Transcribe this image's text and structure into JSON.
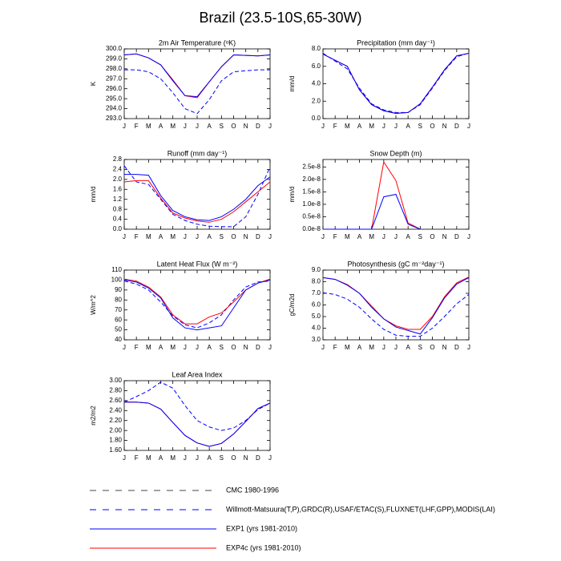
{
  "title": "Brazil (23.5-10S,65-30W)",
  "legend": [
    {
      "name": "CMC 1980-1996",
      "color": "#444444",
      "dash": "8,8"
    },
    {
      "name": "Willmott-Matsuura(T,P),GRDC(R),USAF/ETAC(S),FLUXNET(LHF,GPP),MODIS(LAI)",
      "color": "#0000ff",
      "dash": "8,8"
    },
    {
      "name": "EXP1 (yrs 1981-2010)",
      "color": "#0000ff",
      "dash": "none"
    },
    {
      "name": "EXP4c (yrs 1981-2010)",
      "color": "#ff0000",
      "dash": "none"
    }
  ],
  "chart_data": [
    {
      "type": "line",
      "title": "2m Air Temperature (ᵒK)",
      "ylabel": "K",
      "categories": [
        "J",
        "F",
        "M",
        "A",
        "M",
        "J",
        "J",
        "A",
        "S",
        "O",
        "N",
        "D",
        "J"
      ],
      "ylim": [
        293,
        300
      ],
      "yticks": [
        {
          "value": 293,
          "label": "293.0"
        },
        {
          "value": 294,
          "label": "294.0"
        },
        {
          "value": 295,
          "label": "295.0"
        },
        {
          "value": 296,
          "label": "296.0"
        },
        {
          "value": 297,
          "label": "297.0"
        },
        {
          "value": 298,
          "label": "298.0"
        },
        {
          "value": 299,
          "label": "299.0"
        },
        {
          "value": 300,
          "label": "300.0"
        }
      ],
      "series": [
        {
          "color": "#0000ff",
          "dash": "5,3",
          "values": [
            297.9,
            297.9,
            297.7,
            297.0,
            295.6,
            294.0,
            293.5,
            294.9,
            296.8,
            297.7,
            297.8,
            297.9,
            297.9
          ]
        },
        {
          "color": "#ff0000",
          "dash": "none",
          "values": [
            299.4,
            299.5,
            299.1,
            298.4,
            296.9,
            295.3,
            295.1,
            296.7,
            298.2,
            299.4,
            299.35,
            299.3,
            299.4
          ]
        },
        {
          "color": "#0000ff",
          "dash": "none",
          "values": [
            299.4,
            299.5,
            299.1,
            298.4,
            296.8,
            295.3,
            295.2,
            296.7,
            298.2,
            299.4,
            299.35,
            299.3,
            299.4
          ]
        }
      ]
    },
    {
      "type": "line",
      "title": "Precipitation (mm day⁻¹)",
      "ylabel": "mm/d",
      "categories": [
        "J",
        "F",
        "M",
        "A",
        "M",
        "J",
        "J",
        "A",
        "S",
        "O",
        "N",
        "D",
        "J"
      ],
      "ylim": [
        0,
        8
      ],
      "yticks": [
        {
          "value": 0,
          "label": "0.0"
        },
        {
          "value": 2,
          "label": "2.0"
        },
        {
          "value": 4,
          "label": "4.0"
        },
        {
          "value": 6,
          "label": "6.0"
        },
        {
          "value": 8,
          "label": "8.0"
        }
      ],
      "series": [
        {
          "color": "#0000ff",
          "dash": "5,3",
          "values": [
            7.5,
            6.6,
            5.7,
            3.5,
            1.7,
            1.0,
            0.7,
            0.7,
            1.6,
            3.5,
            5.5,
            7.1,
            7.5
          ]
        },
        {
          "color": "#ff0000",
          "dash": "none",
          "values": [
            7.4,
            6.7,
            6.0,
            3.3,
            1.6,
            0.9,
            0.6,
            0.7,
            1.7,
            3.6,
            5.6,
            7.2,
            7.5
          ]
        },
        {
          "color": "#0000ff",
          "dash": "none",
          "values": [
            7.4,
            6.7,
            6.0,
            3.3,
            1.6,
            0.9,
            0.6,
            0.7,
            1.7,
            3.6,
            5.6,
            7.2,
            7.5
          ]
        }
      ]
    },
    {
      "type": "line",
      "title": "Runoff (mm day⁻¹)",
      "ylabel": "mm/d",
      "categories": [
        "J",
        "F",
        "M",
        "A",
        "M",
        "J",
        "J",
        "A",
        "S",
        "O",
        "N",
        "D",
        "J"
      ],
      "ylim": [
        0,
        2.8
      ],
      "yticks": [
        {
          "value": 0,
          "label": "0.0"
        },
        {
          "value": 0.4,
          "label": "0.4"
        },
        {
          "value": 0.8,
          "label": "0.8"
        },
        {
          "value": 1.2,
          "label": "1.2"
        },
        {
          "value": 1.6,
          "label": "1.6"
        },
        {
          "value": 2.0,
          "label": "2.0"
        },
        {
          "value": 2.4,
          "label": "2.4"
        },
        {
          "value": 2.8,
          "label": "2.8"
        }
      ],
      "series": [
        {
          "color": "#0000ff",
          "dash": "5,3",
          "values": [
            2.55,
            1.9,
            1.8,
            1.2,
            0.6,
            0.35,
            0.2,
            0.12,
            0.1,
            0.1,
            0.5,
            1.4,
            2.5
          ]
        },
        {
          "color": "#ff0000",
          "dash": "none",
          "values": [
            1.9,
            1.95,
            1.95,
            1.25,
            0.65,
            0.45,
            0.33,
            0.28,
            0.4,
            0.7,
            1.1,
            1.5,
            1.9
          ]
        },
        {
          "color": "#0000ff",
          "dash": "none",
          "values": [
            2.2,
            2.2,
            2.17,
            1.35,
            0.75,
            0.5,
            0.38,
            0.35,
            0.5,
            0.8,
            1.2,
            1.75,
            2.1
          ]
        }
      ]
    },
    {
      "type": "line",
      "title": "Snow Depth (m)",
      "ylabel": "mm/d",
      "categories": [
        "J",
        "F",
        "M",
        "A",
        "M",
        "J",
        "J",
        "A",
        "S",
        "O",
        "N",
        "D",
        "J"
      ],
      "ylim": [
        0,
        2.8e-08
      ],
      "yticks": [
        {
          "value": 0,
          "label": "0.0e-8"
        },
        {
          "value": 5e-09,
          "label": "0.5e-8"
        },
        {
          "value": 1e-08,
          "label": "1.0e-8"
        },
        {
          "value": 1.5e-08,
          "label": "1.5e-8"
        },
        {
          "value": 2e-08,
          "label": "2.0e-8"
        },
        {
          "value": 2.5e-08,
          "label": "2.5e-8"
        }
      ],
      "series": [
        {
          "color": "#ff0000",
          "dash": "none",
          "values": [
            0,
            0,
            0,
            0,
            0,
            2.7e-08,
            1.95e-08,
            2.5e-09,
            0,
            null,
            null,
            null,
            null
          ]
        },
        {
          "color": "#0000ff",
          "dash": "none",
          "values": [
            0,
            0,
            0,
            0,
            0,
            1.3e-08,
            1.4e-08,
            2e-09,
            0,
            null,
            null,
            null,
            null
          ]
        }
      ]
    },
    {
      "type": "line",
      "title": "Latent Heat Flux (W m⁻²)",
      "ylabel": "W/m^2",
      "categories": [
        "J",
        "F",
        "M",
        "A",
        "M",
        "J",
        "J",
        "A",
        "S",
        "O",
        "N",
        "D",
        "J"
      ],
      "ylim": [
        40,
        110
      ],
      "yticks": [
        40,
        50,
        60,
        70,
        80,
        90,
        100,
        110
      ],
      "series": [
        {
          "color": "#0000ff",
          "dash": "5,3",
          "values": [
            99,
            96,
            90,
            78,
            64,
            55,
            52,
            57,
            65,
            80,
            93,
            98,
            99
          ]
        },
        {
          "color": "#ff0000",
          "dash": "none",
          "values": [
            101,
            99,
            93,
            83,
            65,
            56,
            56,
            63,
            67,
            78,
            90,
            97,
            101
          ]
        },
        {
          "color": "#0000ff",
          "dash": "none",
          "values": [
            100,
            98,
            92,
            82,
            62,
            52,
            50,
            52,
            54,
            72,
            90,
            97,
            100
          ]
        }
      ]
    },
    {
      "type": "line",
      "title": "Photosynthesis (gC m⁻²day⁻¹)",
      "ylabel": "gC/m2d",
      "categories": [
        "J",
        "F",
        "M",
        "A",
        "M",
        "J",
        "J",
        "A",
        "S",
        "O",
        "N",
        "D",
        "J"
      ],
      "ylim": [
        3,
        9
      ],
      "yticks": [
        {
          "value": 3,
          "label": "3.0"
        },
        {
          "value": 4,
          "label": "4.0"
        },
        {
          "value": 5,
          "label": "5.0"
        },
        {
          "value": 6,
          "label": "6.0"
        },
        {
          "value": 7,
          "label": "7.0"
        },
        {
          "value": 8,
          "label": "8.0"
        },
        {
          "value": 9,
          "label": "9.0"
        }
      ],
      "series": [
        {
          "color": "#0000ff",
          "dash": "5,3",
          "values": [
            7.05,
            6.9,
            6.5,
            5.8,
            4.8,
            3.9,
            3.4,
            3.3,
            3.3,
            4.0,
            5.0,
            6.1,
            6.9
          ]
        },
        {
          "color": "#ff0000",
          "dash": "none",
          "values": [
            8.35,
            8.2,
            7.75,
            7.0,
            5.9,
            4.8,
            4.2,
            3.9,
            3.9,
            5.0,
            6.7,
            7.9,
            8.4
          ]
        },
        {
          "color": "#0000ff",
          "dash": "none",
          "values": [
            8.35,
            8.2,
            7.7,
            7.0,
            5.8,
            4.8,
            4.1,
            3.8,
            3.5,
            4.9,
            6.6,
            7.8,
            8.35
          ]
        }
      ]
    },
    {
      "type": "line",
      "title": "Leaf Area Index",
      "ylabel": "m2/m2",
      "categories": [
        "J",
        "F",
        "M",
        "A",
        "M",
        "J",
        "J",
        "A",
        "S",
        "O",
        "N",
        "D",
        "J"
      ],
      "ylim": [
        1.6,
        3.0
      ],
      "yticks": [
        {
          "value": 1.6,
          "label": "1.60"
        },
        {
          "value": 1.8,
          "label": "1.80"
        },
        {
          "value": 2.0,
          "label": "2.00"
        },
        {
          "value": 2.2,
          "label": "2.20"
        },
        {
          "value": 2.4,
          "label": "2.40"
        },
        {
          "value": 2.6,
          "label": "2.60"
        },
        {
          "value": 2.8,
          "label": "2.80"
        },
        {
          "value": 3.0,
          "label": "3.00"
        }
      ],
      "series": [
        {
          "color": "#0000ff",
          "dash": "5,3",
          "values": [
            2.57,
            2.68,
            2.8,
            2.97,
            2.85,
            2.5,
            2.2,
            2.07,
            2.0,
            2.05,
            2.2,
            2.42,
            2.55
          ]
        },
        {
          "color": "#ff0000",
          "dash": "none",
          "values": [
            2.57,
            2.57,
            2.55,
            2.43,
            2.16,
            1.9,
            1.75,
            1.68,
            1.74,
            1.93,
            2.18,
            2.44,
            2.55
          ]
        },
        {
          "color": "#0000ff",
          "dash": "none",
          "values": [
            2.57,
            2.57,
            2.55,
            2.43,
            2.16,
            1.9,
            1.75,
            1.68,
            1.74,
            1.93,
            2.18,
            2.44,
            2.55
          ]
        }
      ]
    }
  ]
}
